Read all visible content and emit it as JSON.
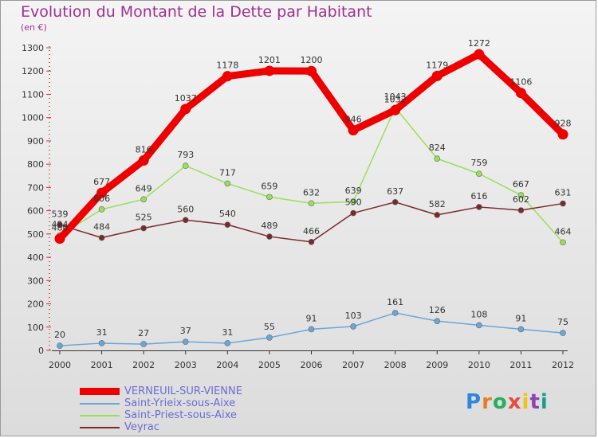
{
  "title": "Evolution du Montant de la Dette par Habitant",
  "unit_label": "(en €)",
  "logo_text": "Proxiti",
  "chart_data": {
    "type": "line",
    "title": "Evolution du Montant de la Dette par Habitant",
    "ylabel": "(en €)",
    "xlabel": "",
    "x": [
      2000,
      2001,
      2002,
      2003,
      2004,
      2005,
      2006,
      2007,
      2008,
      2009,
      2010,
      2011,
      2012
    ],
    "ylim": [
      0,
      1300
    ],
    "yticks": [
      0,
      100,
      200,
      300,
      400,
      500,
      600,
      700,
      800,
      900,
      1000,
      1100,
      1200,
      1300
    ],
    "grid": false,
    "legend_position": "bottom-left",
    "series": [
      {
        "name": "VERNEUIL-SUR-VIENNE",
        "color": "#ee0000",
        "values": [
          480,
          677,
          816,
          1037,
          1178,
          1201,
          1200,
          946,
          1032,
          1179,
          1272,
          1106,
          928
        ]
      },
      {
        "name": "Saint-Yrieix-sous-Aixe",
        "color": "#6aa6d8",
        "values": [
          20,
          31,
          27,
          37,
          31,
          55,
          91,
          103,
          161,
          126,
          108,
          91,
          75
        ]
      },
      {
        "name": "Saint-Priest-sous-Aixe",
        "color": "#99e05a",
        "values": [
          494,
          606,
          649,
          793,
          717,
          659,
          632,
          639,
          1043,
          824,
          759,
          667,
          464
        ]
      },
      {
        "name": "Veyrac",
        "color": "#7a2a2a",
        "values": [
          539,
          484,
          525,
          560,
          540,
          489,
          466,
          590,
          637,
          582,
          616,
          602,
          631
        ]
      }
    ]
  }
}
